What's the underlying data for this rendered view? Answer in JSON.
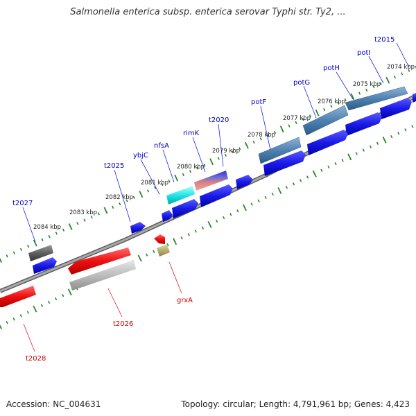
{
  "title": "Salmonella enterica subsp. enterica serovar Typhi str. Ty2, ...",
  "footer": {
    "accession": "Accession: NC_004631",
    "topology": "Topology: circular; Length: 4,791,961 bp; Genes: 4,423"
  },
  "map": {
    "kbp_labels": [
      "2074 kbp",
      "2075 kbp",
      "2076 kbp",
      "2077 kbp",
      "2078 kbp",
      "2079 kbp",
      "2080 kbp",
      "2081 kbp",
      "2082 kbp",
      "2083 kbp",
      "2084 kbp"
    ],
    "forward_gene_labels": [
      "t2015",
      "potI",
      "potH",
      "potG",
      "potF",
      "t2020",
      "rimK",
      "nfsA",
      "ybjC",
      "t2025",
      "t2027"
    ],
    "reverse_gene_labels": [
      "grxA",
      "t2026",
      "t2028"
    ]
  },
  "colors": {
    "forward_cds": "#1010e0",
    "reverse_cds": "#e01010",
    "forward_label": "#0000cc",
    "reverse_label": "#cc0000",
    "tick": "#228822",
    "backbone": "#888888"
  }
}
